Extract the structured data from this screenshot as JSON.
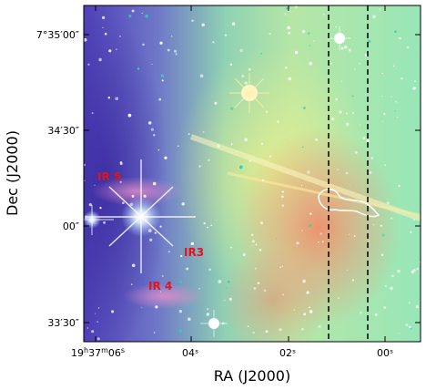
{
  "figure": {
    "x_axis_label": "RA (J2000)",
    "y_axis_label": "Dec (J2000)",
    "x_ticks": {
      "ra_first": {
        "h": "19",
        "m": "37",
        "s": "06"
      },
      "labels": [
        "04ˢ",
        "02ˢ",
        "00ˢ"
      ]
    },
    "y_ticks": [
      "7°35′00″",
      "34′30″",
      "00″",
      "33′30″"
    ],
    "region_labels": [
      "IR 5",
      "IR3",
      "IR 4"
    ],
    "colors": {
      "region_label": "#e0141e",
      "slit_lines": "#000000",
      "contour": "#ffffff"
    }
  }
}
